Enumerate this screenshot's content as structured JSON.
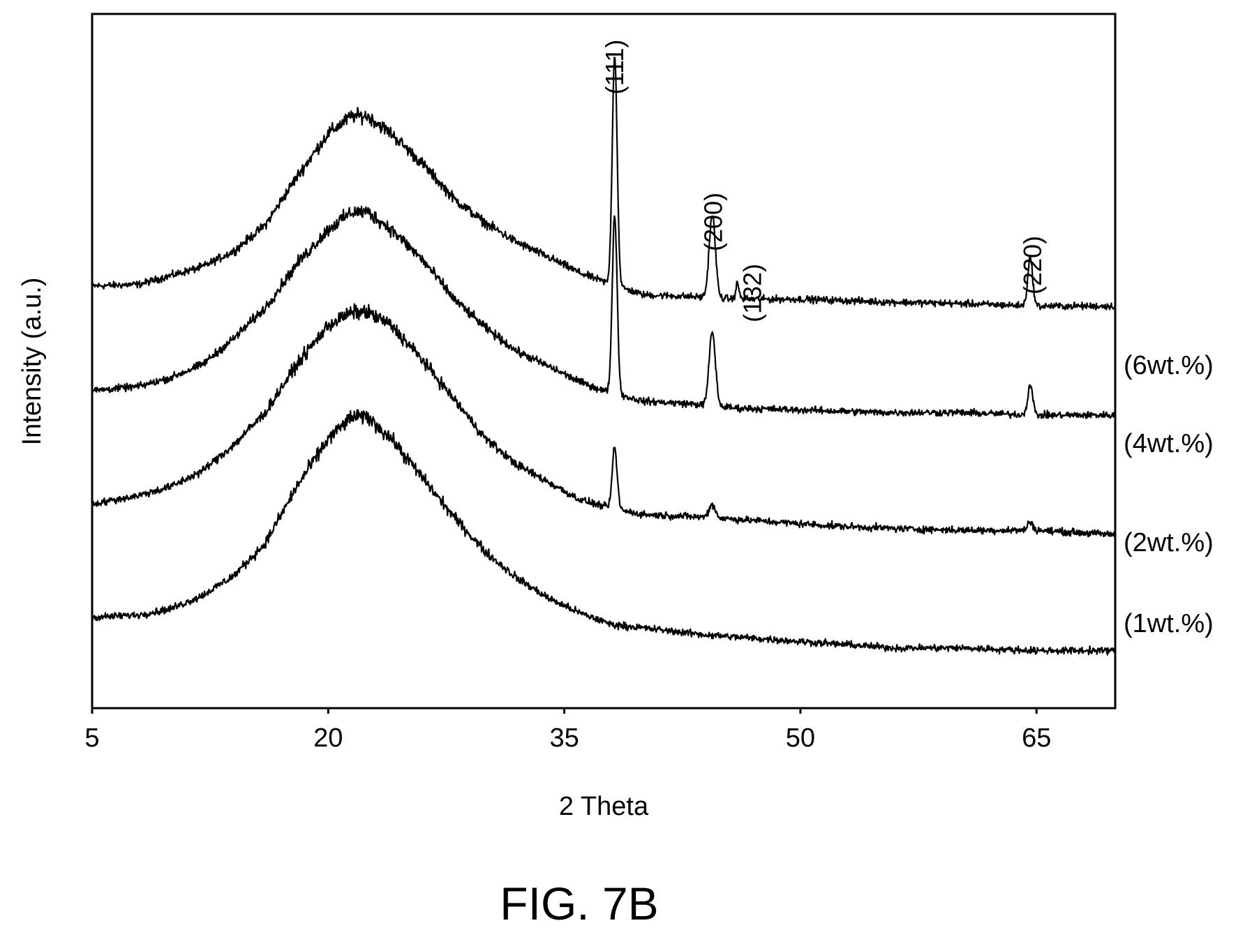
{
  "figure_caption": "FIG. 7B",
  "chart_data": {
    "type": "line",
    "title": "",
    "xlabel": "2 Theta",
    "ylabel": "Intensity (a.u.)",
    "xlim": [
      5,
      70
    ],
    "x_ticks": [
      5,
      20,
      35,
      50,
      65
    ],
    "y_ticks_shown": false,
    "grid": false,
    "legend": "series labels at right end of each trace",
    "line_color": "#000000",
    "series": [
      {
        "name": "(6wt.%)",
        "offset": 4.6,
        "noise": 0.07,
        "points": [
          [
            5,
            0.0
          ],
          [
            8,
            0.02
          ],
          [
            10,
            0.12
          ],
          [
            12,
            0.22
          ],
          [
            14,
            0.4
          ],
          [
            16,
            0.7
          ],
          [
            18,
            1.25
          ],
          [
            20,
            1.75
          ],
          [
            21.5,
            1.95
          ],
          [
            22.5,
            1.95
          ],
          [
            24,
            1.75
          ],
          [
            26,
            1.4
          ],
          [
            28,
            1.0
          ],
          [
            30,
            0.72
          ],
          [
            32,
            0.5
          ],
          [
            34,
            0.33
          ],
          [
            36,
            0.15
          ],
          [
            37.5,
            0.05
          ],
          [
            40,
            -0.1
          ],
          [
            43,
            -0.12
          ],
          [
            46,
            -0.15
          ],
          [
            50,
            -0.15
          ],
          [
            55,
            -0.18
          ],
          [
            60,
            -0.2
          ],
          [
            65,
            -0.23
          ],
          [
            70,
            -0.23
          ]
        ]
      },
      {
        "name": "(4wt.%)",
        "offset": 3.4,
        "noise": 0.07,
        "points": [
          [
            5,
            0.0
          ],
          [
            8,
            0.05
          ],
          [
            10,
            0.15
          ],
          [
            12,
            0.3
          ],
          [
            14,
            0.6
          ],
          [
            16,
            0.95
          ],
          [
            18,
            1.45
          ],
          [
            20,
            1.85
          ],
          [
            21.5,
            2.05
          ],
          [
            22.5,
            2.05
          ],
          [
            24,
            1.85
          ],
          [
            26,
            1.5
          ],
          [
            28,
            1.05
          ],
          [
            30,
            0.72
          ],
          [
            32,
            0.45
          ],
          [
            34,
            0.28
          ],
          [
            36,
            0.1
          ],
          [
            37.5,
            0.0
          ],
          [
            40,
            -0.12
          ],
          [
            43,
            -0.15
          ],
          [
            46,
            -0.2
          ],
          [
            50,
            -0.22
          ],
          [
            55,
            -0.25
          ],
          [
            60,
            -0.25
          ],
          [
            65,
            -0.28
          ],
          [
            70,
            -0.28
          ]
        ]
      },
      {
        "name": "(2wt.%)",
        "offset": 2.1,
        "noise": 0.07,
        "points": [
          [
            5,
            0.0
          ],
          [
            8,
            0.1
          ],
          [
            10,
            0.2
          ],
          [
            12,
            0.38
          ],
          [
            14,
            0.68
          ],
          [
            16,
            1.05
          ],
          [
            18,
            1.6
          ],
          [
            20,
            2.05
          ],
          [
            21.5,
            2.2
          ],
          [
            22.5,
            2.2
          ],
          [
            24,
            2.05
          ],
          [
            26,
            1.65
          ],
          [
            28,
            1.2
          ],
          [
            30,
            0.75
          ],
          [
            32,
            0.45
          ],
          [
            34,
            0.25
          ],
          [
            36,
            0.05
          ],
          [
            38,
            -0.05
          ],
          [
            40,
            -0.12
          ],
          [
            44,
            -0.15
          ],
          [
            48,
            -0.2
          ],
          [
            52,
            -0.25
          ],
          [
            56,
            -0.28
          ],
          [
            60,
            -0.3
          ],
          [
            65,
            -0.3
          ],
          [
            70,
            -0.35
          ]
        ]
      },
      {
        "name": "(1wt.%)",
        "offset": 0.8,
        "noise": 0.07,
        "points": [
          [
            5,
            0.0
          ],
          [
            8,
            0.03
          ],
          [
            10,
            0.1
          ],
          [
            12,
            0.25
          ],
          [
            14,
            0.48
          ],
          [
            16,
            0.85
          ],
          [
            18,
            1.5
          ],
          [
            20,
            2.05
          ],
          [
            21.5,
            2.3
          ],
          [
            22.5,
            2.3
          ],
          [
            24,
            2.05
          ],
          [
            26,
            1.6
          ],
          [
            28,
            1.15
          ],
          [
            30,
            0.75
          ],
          [
            32,
            0.45
          ],
          [
            34,
            0.22
          ],
          [
            36,
            0.05
          ],
          [
            38,
            -0.08
          ],
          [
            40,
            -0.12
          ],
          [
            44,
            -0.2
          ],
          [
            48,
            -0.25
          ],
          [
            52,
            -0.3
          ],
          [
            56,
            -0.35
          ],
          [
            60,
            -0.35
          ],
          [
            65,
            -0.38
          ],
          [
            70,
            -0.38
          ]
        ]
      }
    ],
    "peaks": [
      {
        "label": "(111)",
        "x": 38.2,
        "width": 0.22,
        "heights": [
          2.65,
          2.05,
          0.7,
          0
        ]
      },
      {
        "label": "(200)",
        "x": 44.4,
        "width": 0.28,
        "heights": [
          0.95,
          0.85,
          0.15,
          0
        ]
      },
      {
        "label": "(132)",
        "x": 46.0,
        "width": 0.15,
        "heights": [
          0.18,
          0,
          0,
          0
        ]
      },
      {
        "label": "(220)",
        "x": 64.6,
        "width": 0.22,
        "heights": [
          0.55,
          0.35,
          0.1,
          0
        ]
      }
    ]
  }
}
